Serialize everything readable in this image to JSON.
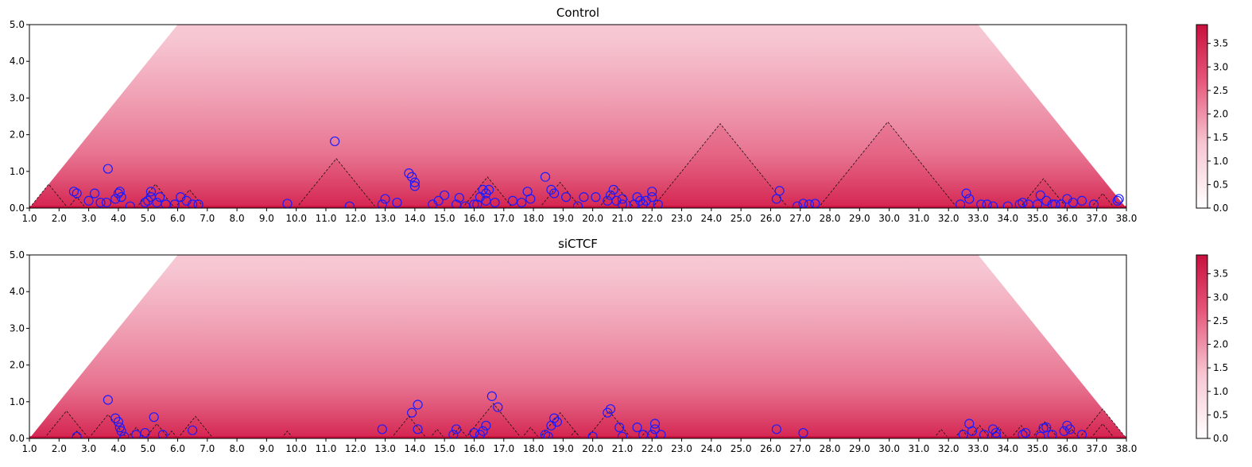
{
  "chart_data": [
    {
      "type": "heatmap",
      "title": "Control",
      "xlabel": "",
      "ylabel": "",
      "xlim": [
        1.0,
        38.0
      ],
      "ylim": [
        0.0,
        5.0
      ],
      "xticks": [
        "1.0",
        "2.0",
        "3.0",
        "4.0",
        "5.0",
        "6.0",
        "7.0",
        "8.0",
        "9.0",
        "10.0",
        "11.0",
        "12.0",
        "13.0",
        "14.0",
        "15.0",
        "16.0",
        "17.0",
        "18.0",
        "19.0",
        "20.0",
        "21.0",
        "22.0",
        "23.0",
        "24.0",
        "25.0",
        "26.0",
        "27.0",
        "28.0",
        "29.0",
        "30.0",
        "31.0",
        "32.0",
        "33.0",
        "34.0",
        "35.0",
        "36.0",
        "37.0",
        "38.0"
      ],
      "yticks": [
        "0.0",
        "1.0",
        "2.0",
        "3.0",
        "4.0",
        "5.0"
      ],
      "colorbar": {
        "range": [
          0.0,
          3.9
        ],
        "ticks": [
          "0.0",
          "0.5",
          "1.0",
          "1.5",
          "2.0",
          "2.5",
          "3.0",
          "3.5"
        ],
        "color_low": "#ffffff",
        "color_high": "#c8103e"
      },
      "domains": [
        [
          1.0,
          2.3
        ],
        [
          2.3,
          2.9
        ],
        [
          4.6,
          5.9
        ],
        [
          5.9,
          6.9
        ],
        [
          10.0,
          12.7
        ],
        [
          15.6,
          17.3
        ],
        [
          18.2,
          19.6
        ],
        [
          20.2,
          21.4
        ],
        [
          22.0,
          26.6
        ],
        [
          27.6,
          32.3
        ],
        [
          34.4,
          36.0
        ],
        [
          36.8,
          37.6
        ]
      ],
      "loops": [
        [
          2.5,
          0.45
        ],
        [
          2.6,
          0.4
        ],
        [
          3.0,
          0.2
        ],
        [
          3.2,
          0.4
        ],
        [
          3.4,
          0.15
        ],
        [
          3.6,
          0.15
        ],
        [
          3.65,
          1.07
        ],
        [
          3.9,
          0.25
        ],
        [
          4.0,
          0.4
        ],
        [
          4.1,
          0.3
        ],
        [
          4.05,
          0.45
        ],
        [
          4.4,
          0.05
        ],
        [
          4.9,
          0.15
        ],
        [
          5.0,
          0.2
        ],
        [
          5.1,
          0.3
        ],
        [
          5.1,
          0.45
        ],
        [
          5.3,
          0.15
        ],
        [
          5.4,
          0.3
        ],
        [
          5.6,
          0.1
        ],
        [
          5.9,
          0.1
        ],
        [
          6.1,
          0.3
        ],
        [
          6.3,
          0.2
        ],
        [
          6.5,
          0.1
        ],
        [
          6.7,
          0.1
        ],
        [
          9.7,
          0.12
        ],
        [
          11.3,
          1.82
        ],
        [
          11.8,
          0.05
        ],
        [
          12.9,
          0.1
        ],
        [
          13.0,
          0.25
        ],
        [
          13.4,
          0.15
        ],
        [
          13.8,
          0.95
        ],
        [
          13.9,
          0.85
        ],
        [
          14.0,
          0.7
        ],
        [
          14.0,
          0.6
        ],
        [
          14.6,
          0.1
        ],
        [
          14.8,
          0.2
        ],
        [
          15.0,
          0.35
        ],
        [
          15.4,
          0.1
        ],
        [
          15.5,
          0.28
        ],
        [
          15.7,
          0.05
        ],
        [
          16.0,
          0.1
        ],
        [
          16.1,
          0.1
        ],
        [
          16.2,
          0.3
        ],
        [
          16.3,
          0.5
        ],
        [
          16.4,
          0.4
        ],
        [
          16.4,
          0.2
        ],
        [
          16.5,
          0.5
        ],
        [
          16.7,
          0.15
        ],
        [
          17.3,
          0.2
        ],
        [
          17.6,
          0.15
        ],
        [
          17.8,
          0.45
        ],
        [
          17.9,
          0.25
        ],
        [
          18.4,
          0.85
        ],
        [
          18.6,
          0.5
        ],
        [
          18.7,
          0.4
        ],
        [
          19.1,
          0.3
        ],
        [
          19.5,
          0.05
        ],
        [
          19.7,
          0.3
        ],
        [
          20.1,
          0.3
        ],
        [
          20.5,
          0.2
        ],
        [
          20.6,
          0.35
        ],
        [
          20.7,
          0.5
        ],
        [
          20.8,
          0.2
        ],
        [
          21.0,
          0.25
        ],
        [
          21.0,
          0.1
        ],
        [
          21.4,
          0.1
        ],
        [
          21.5,
          0.3
        ],
        [
          21.6,
          0.2
        ],
        [
          21.7,
          0.1
        ],
        [
          21.8,
          0.2
        ],
        [
          22.0,
          0.3
        ],
        [
          22.0,
          0.45
        ],
        [
          22.2,
          0.1
        ],
        [
          26.2,
          0.25
        ],
        [
          26.3,
          0.47
        ],
        [
          26.9,
          0.05
        ],
        [
          27.1,
          0.12
        ],
        [
          27.3,
          0.1
        ],
        [
          27.5,
          0.12
        ],
        [
          32.4,
          0.1
        ],
        [
          32.6,
          0.4
        ],
        [
          32.7,
          0.25
        ],
        [
          33.1,
          0.1
        ],
        [
          33.3,
          0.1
        ],
        [
          33.5,
          0.05
        ],
        [
          34.0,
          0.05
        ],
        [
          34.4,
          0.1
        ],
        [
          34.5,
          0.15
        ],
        [
          34.7,
          0.1
        ],
        [
          35.0,
          0.1
        ],
        [
          35.1,
          0.35
        ],
        [
          35.3,
          0.2
        ],
        [
          35.5,
          0.1
        ],
        [
          35.6,
          0.1
        ],
        [
          35.8,
          0.1
        ],
        [
          36.0,
          0.25
        ],
        [
          36.2,
          0.15
        ],
        [
          36.5,
          0.2
        ],
        [
          36.9,
          0.1
        ],
        [
          37.7,
          0.2
        ],
        [
          37.75,
          0.25
        ]
      ]
    },
    {
      "type": "heatmap",
      "title": "siCTCF",
      "xlabel": "",
      "ylabel": "",
      "xlim": [
        1.0,
        38.0
      ],
      "ylim": [
        0.0,
        5.0
      ],
      "xticks": [
        "1.0",
        "2.0",
        "3.0",
        "4.0",
        "5.0",
        "6.0",
        "7.0",
        "8.0",
        "9.0",
        "10.0",
        "11.0",
        "12.0",
        "13.0",
        "14.0",
        "15.0",
        "16.0",
        "17.0",
        "18.0",
        "19.0",
        "20.0",
        "21.0",
        "22.0",
        "23.0",
        "24.0",
        "25.0",
        "26.0",
        "27.0",
        "28.0",
        "29.0",
        "30.0",
        "31.0",
        "32.0",
        "33.0",
        "34.0",
        "35.0",
        "36.0",
        "37.0",
        "38.0"
      ],
      "yticks": [
        "0.0",
        "1.0",
        "2.0",
        "3.0",
        "4.0",
        "5.0"
      ],
      "colorbar": {
        "range": [
          0.0,
          3.9
        ],
        "ticks": [
          "0.0",
          "0.5",
          "1.0",
          "1.5",
          "2.0",
          "2.5",
          "3.0",
          "3.5"
        ],
        "color_low": "#ffffff",
        "color_high": "#c8103e"
      },
      "domains": [
        [
          1.5,
          3.0
        ],
        [
          2.4,
          2.8
        ],
        [
          3.0,
          4.3
        ],
        [
          4.3,
          4.9
        ],
        [
          4.9,
          5.7
        ],
        [
          5.6,
          6.0
        ],
        [
          6.0,
          7.2
        ],
        [
          9.5,
          9.9
        ],
        [
          13.2,
          14.4
        ],
        [
          14.5,
          15.0
        ],
        [
          15.2,
          15.8
        ],
        [
          15.7,
          17.6
        ],
        [
          17.6,
          18.2
        ],
        [
          18.2,
          19.6
        ],
        [
          19.2,
          19.6
        ],
        [
          19.8,
          21.3
        ],
        [
          21.6,
          22.0
        ],
        [
          31.5,
          32.0
        ],
        [
          32.2,
          32.7
        ],
        [
          32.7,
          33.4
        ],
        [
          33.4,
          34.0
        ],
        [
          34.1,
          34.8
        ],
        [
          34.8,
          35.7
        ],
        [
          35.9,
          36.4
        ],
        [
          36.4,
          38.0
        ],
        [
          36.8,
          37.6
        ]
      ],
      "loops": [
        [
          2.6,
          0.05
        ],
        [
          3.65,
          1.05
        ],
        [
          3.9,
          0.55
        ],
        [
          4.0,
          0.45
        ],
        [
          4.05,
          0.3
        ],
        [
          4.1,
          0.2
        ],
        [
          4.2,
          0.05
        ],
        [
          4.6,
          0.1
        ],
        [
          4.9,
          0.15
        ],
        [
          5.2,
          0.58
        ],
        [
          5.5,
          0.1
        ],
        [
          6.5,
          0.22
        ],
        [
          12.9,
          0.25
        ],
        [
          13.9,
          0.7
        ],
        [
          14.1,
          0.92
        ],
        [
          14.1,
          0.25
        ],
        [
          15.3,
          0.1
        ],
        [
          15.4,
          0.25
        ],
        [
          16.0,
          0.15
        ],
        [
          16.2,
          0.1
        ],
        [
          16.3,
          0.2
        ],
        [
          16.4,
          0.35
        ],
        [
          16.6,
          1.15
        ],
        [
          16.8,
          0.85
        ],
        [
          18.4,
          0.1
        ],
        [
          18.5,
          0.05
        ],
        [
          18.6,
          0.35
        ],
        [
          18.7,
          0.55
        ],
        [
          18.8,
          0.45
        ],
        [
          20.0,
          0.05
        ],
        [
          20.5,
          0.7
        ],
        [
          20.6,
          0.8
        ],
        [
          20.9,
          0.3
        ],
        [
          21.0,
          0.05
        ],
        [
          21.5,
          0.3
        ],
        [
          21.7,
          0.1
        ],
        [
          22.0,
          0.1
        ],
        [
          22.1,
          0.4
        ],
        [
          22.1,
          0.25
        ],
        [
          22.3,
          0.1
        ],
        [
          26.2,
          0.25
        ],
        [
          27.1,
          0.15
        ],
        [
          32.5,
          0.1
        ],
        [
          32.7,
          0.4
        ],
        [
          32.8,
          0.2
        ],
        [
          33.2,
          0.1
        ],
        [
          33.5,
          0.25
        ],
        [
          33.6,
          0.15
        ],
        [
          33.6,
          0.05
        ],
        [
          34.5,
          0.1
        ],
        [
          34.6,
          0.15
        ],
        [
          35.1,
          0.05
        ],
        [
          35.2,
          0.28
        ],
        [
          35.3,
          0.3
        ],
        [
          35.5,
          0.1
        ],
        [
          35.9,
          0.2
        ],
        [
          36.0,
          0.35
        ],
        [
          36.1,
          0.25
        ],
        [
          36.5,
          0.1
        ]
      ]
    }
  ]
}
